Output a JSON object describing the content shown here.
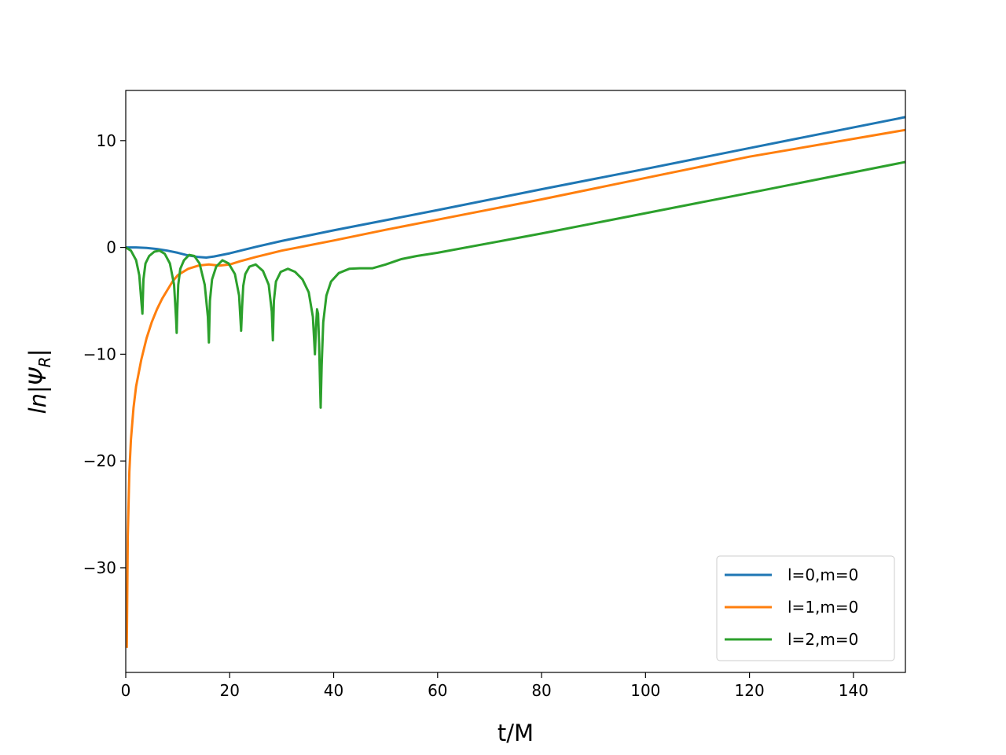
{
  "chart_data": {
    "type": "line",
    "title": "",
    "xlabel": "t/M",
    "ylabel": "ln|Ψ_R|",
    "xlim": [
      0,
      150
    ],
    "ylim": [
      -39.8,
      14.7
    ],
    "xticks": [
      0,
      20,
      40,
      60,
      80,
      100,
      120,
      140
    ],
    "yticks": [
      10,
      0,
      -10,
      -20,
      -30
    ],
    "xtick_labels": [
      "0",
      "20",
      "40",
      "60",
      "80",
      "100",
      "120",
      "140"
    ],
    "ytick_labels": [
      "10",
      "0",
      "−10",
      "−20",
      "−30"
    ],
    "grid": false,
    "legend_position": "lower-right",
    "series": [
      {
        "name": "l=0,m=0",
        "color": "#1f77b4",
        "x": [
          0,
          2,
          4,
          6,
          8,
          10,
          12,
          14,
          15.5,
          17,
          20,
          25,
          30,
          40,
          50,
          60,
          80,
          100,
          120,
          150
        ],
        "y": [
          0,
          0,
          -0.05,
          -0.15,
          -0.3,
          -0.5,
          -0.75,
          -0.9,
          -0.95,
          -0.85,
          -0.55,
          0.05,
          0.6,
          1.6,
          2.55,
          3.5,
          5.45,
          7.35,
          9.3,
          12.2
        ]
      },
      {
        "name": "l=1,m=0",
        "color": "#ff7f0e",
        "x": [
          0.2,
          0.4,
          0.7,
          1,
          1.5,
          2,
          3,
          4,
          5,
          6,
          7,
          8,
          9,
          10,
          12,
          14,
          16,
          18,
          20,
          22,
          25,
          30,
          40,
          50,
          60,
          80,
          100,
          120,
          150
        ],
        "y": [
          -37.5,
          -27,
          -21,
          -18,
          -15,
          -13,
          -10.5,
          -8.5,
          -7,
          -5.8,
          -4.8,
          -4,
          -3.2,
          -2.6,
          -2,
          -1.7,
          -1.6,
          -1.7,
          -1.6,
          -1.3,
          -0.9,
          -0.3,
          0.65,
          1.65,
          2.6,
          4.5,
          6.5,
          8.5,
          11.0
        ]
      },
      {
        "name": "l=2,m=0",
        "color": "#2ca02c",
        "x": [
          0,
          1,
          2,
          2.6,
          3.0,
          3.2,
          3.4,
          3.8,
          4.5,
          5.5,
          6.5,
          7.5,
          8.5,
          9.3,
          9.7,
          9.8,
          9.9,
          10.1,
          10.5,
          11.2,
          12.2,
          13.2,
          14.2,
          15.2,
          15.8,
          16.0,
          16.2,
          16.6,
          17.4,
          18.6,
          19.8,
          21.0,
          21.8,
          22.2,
          22.4,
          22.6,
          23.0,
          23.8,
          25.0,
          26.4,
          27.5,
          28.1,
          28.3,
          28.5,
          28.9,
          29.8,
          31.2,
          32.6,
          34.0,
          35.2,
          36.0,
          36.4,
          36.6,
          36.8,
          37.0,
          37.2,
          37.4,
          37.5,
          37.7,
          38.0,
          38.6,
          39.5,
          41.0,
          43.0,
          45.0,
          47.5,
          50,
          53,
          56,
          60,
          80,
          100,
          120,
          150
        ],
        "y": [
          0,
          -0.3,
          -1.2,
          -2.6,
          -5.0,
          -6.2,
          -3.0,
          -1.5,
          -0.8,
          -0.4,
          -0.3,
          -0.6,
          -1.5,
          -3.5,
          -6.8,
          -8.0,
          -6.0,
          -3.5,
          -2.0,
          -1.2,
          -0.7,
          -0.8,
          -1.5,
          -3.5,
          -6.5,
          -8.9,
          -5.0,
          -3.0,
          -1.8,
          -1.2,
          -1.5,
          -2.5,
          -4.5,
          -7.8,
          -5.5,
          -3.6,
          -2.5,
          -1.8,
          -1.6,
          -2.2,
          -3.5,
          -6.0,
          -8.7,
          -5.0,
          -3.2,
          -2.3,
          -2.0,
          -2.3,
          -3.0,
          -4.2,
          -6.5,
          -10.0,
          -7.5,
          -5.8,
          -6.2,
          -9.0,
          -13.0,
          -15.0,
          -11.0,
          -7.0,
          -4.5,
          -3.2,
          -2.4,
          -2.0,
          -1.95,
          -1.95,
          -1.6,
          -1.1,
          -0.8,
          -0.5,
          1.3,
          3.2,
          5.1,
          8.0
        ]
      }
    ]
  }
}
